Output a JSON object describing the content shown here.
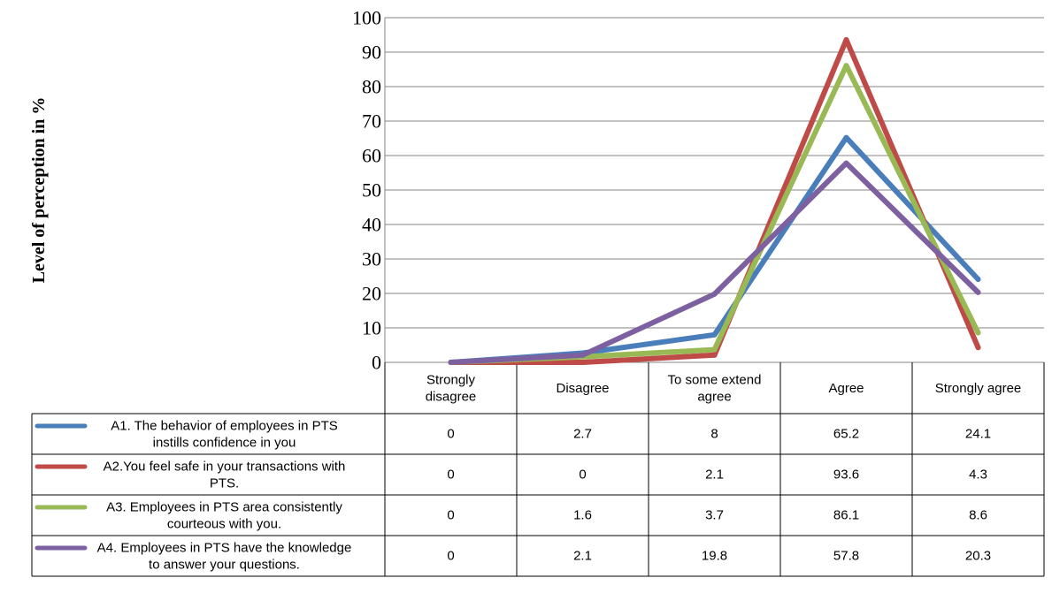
{
  "chart_data": {
    "type": "line",
    "title": "",
    "xlabel": "",
    "ylabel": "Level of perception in  %",
    "ylim": [
      0,
      100
    ],
    "yticks": [
      0,
      10,
      20,
      30,
      40,
      50,
      60,
      70,
      80,
      90,
      100
    ],
    "grid": true,
    "legend": "data-table",
    "categories": [
      [
        "Strongly",
        "disagree"
      ],
      [
        "Disagree"
      ],
      [
        "To some extend",
        "agree"
      ],
      [
        "Agree"
      ],
      [
        "Strongly agree"
      ]
    ],
    "series": [
      {
        "name": [
          "A1. The behavior of employees in PTS",
          "instills confidence in you"
        ],
        "color": "#4a7ebb",
        "values": [
          0,
          2.7,
          8,
          65.2,
          24.1
        ]
      },
      {
        "name": [
          "A2.You feel safe in your transactions with",
          "PTS."
        ],
        "color": "#be4b48",
        "values": [
          0,
          0,
          2.1,
          93.6,
          4.3
        ]
      },
      {
        "name": [
          "A3. Employees in PTS area consistently",
          "courteous with you."
        ],
        "color": "#98b954",
        "values": [
          0,
          1.6,
          3.7,
          86.1,
          8.6
        ]
      },
      {
        "name": [
          "A4. Employees in PTS have the knowledge",
          "to answer your questions."
        ],
        "color": "#7d60a0",
        "values": [
          0,
          2.1,
          19.8,
          57.8,
          20.3
        ]
      }
    ]
  }
}
